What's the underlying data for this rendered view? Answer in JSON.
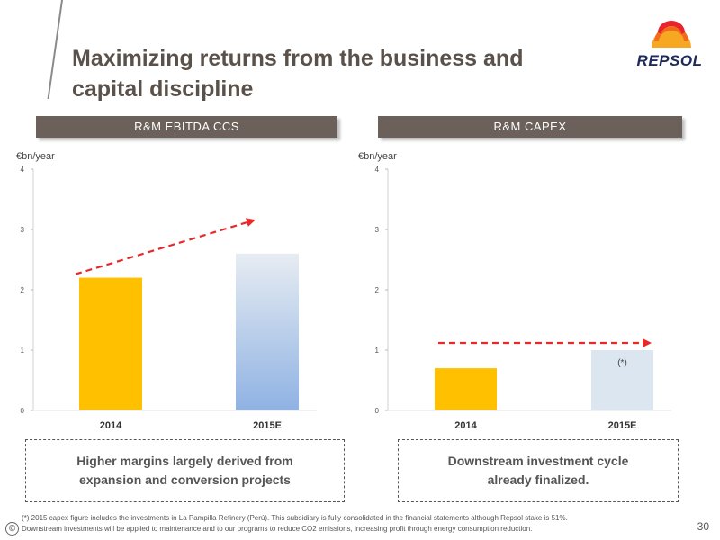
{
  "page": {
    "title_line1": "Maximizing returns from the business and",
    "title_line2": "capital discipline",
    "logo_text": "REPSOL",
    "page_number": "30",
    "copyright_symbol": "©",
    "footnote1": "(*) 2015 capex figure includes the investments in La Pampilla Refinery (Perú). This subsidiary is fully consolidated in the financial statements although Repsol stake is 51%.",
    "footnote2": "Downstream investments will be applied to maintenance and to our programs to reduce CO2 emissions, increasing profit through energy consumption reduction."
  },
  "colors": {
    "bar_2014": "#ffc000",
    "bar_2015E_top": "#e7ecf2",
    "bar_2015E_bottom": "#8fb2e3",
    "capex_2015E": "#dce6f1",
    "arrow": "#e8292b",
    "header_bg": "#6b605a"
  },
  "chart_data": [
    {
      "type": "bar",
      "title": "R&M EBITDA CCS",
      "unit_label": "€bn/year",
      "categories": [
        "2014",
        "2015E"
      ],
      "values": [
        2.2,
        2.6
      ],
      "ylim": [
        0,
        4
      ],
      "yticks": [
        "0",
        "1",
        "2",
        "3",
        "4"
      ],
      "trend_arrow": "rising dashed red arrow from 2014 to 2015E",
      "callout": "Higher margins largely derived from expansion and conversion projects"
    },
    {
      "type": "bar",
      "title": "R&M CAPEX",
      "unit_label": "€bn/year",
      "categories": [
        "2014",
        "2015E"
      ],
      "values": [
        0.7,
        1.0
      ],
      "ylim": [
        0,
        4
      ],
      "yticks": [
        "0",
        "1",
        "2",
        "3",
        "4"
      ],
      "bar_annotation": "(*)",
      "trend_arrow": "flat dashed red arrow from 2014 to 2015E",
      "callout": "Downstream investment cycle already finalized."
    }
  ]
}
